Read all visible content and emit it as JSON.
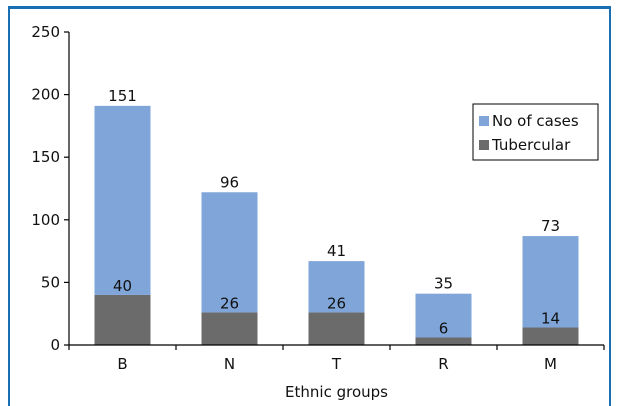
{
  "chart_data": {
    "type": "bar",
    "stacked": true,
    "categories": [
      "B",
      "N",
      "T",
      "R",
      "M"
    ],
    "series": [
      {
        "name": "Tubercular",
        "values": [
          40,
          26,
          26,
          6,
          14
        ],
        "color": "#6b6b6b"
      },
      {
        "name": "No of cases",
        "values": [
          151,
          96,
          41,
          35,
          73
        ],
        "color": "#7fa5d9"
      }
    ],
    "ylim": [
      0,
      250
    ],
    "yticks": [
      0,
      50,
      100,
      150,
      200,
      250
    ],
    "xlabel": "Ethnic groups",
    "ylabel": "",
    "title": "",
    "legend_position": "right",
    "grid": false
  }
}
